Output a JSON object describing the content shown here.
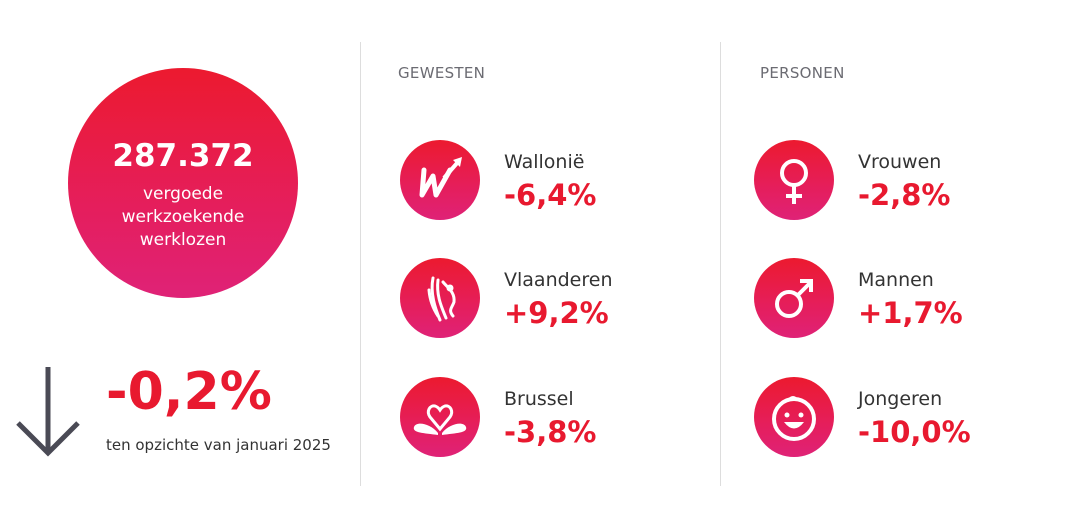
{
  "summary": {
    "total": "287.372",
    "description_lines": [
      "vergoede",
      "werkzoekende",
      "werklozen"
    ],
    "change": "-0,2%",
    "change_note": "ten opzichte van januari 2025",
    "trend_icon": "arrow-down-icon"
  },
  "gewesten": {
    "header": "GEWESTEN",
    "items": [
      {
        "label": "Wallonië",
        "value": "-6,4%",
        "icon": "wallonia-logo-icon"
      },
      {
        "label": "Vlaanderen",
        "value": "+9,2%",
        "icon": "flanders-lion-icon"
      },
      {
        "label": "Brussel",
        "value": "-3,8%",
        "icon": "brussels-heart-icon"
      }
    ]
  },
  "personen": {
    "header": "PERSONEN",
    "items": [
      {
        "label": "Vrouwen",
        "value": "-2,8%",
        "icon": "female-symbol-icon"
      },
      {
        "label": "Mannen",
        "value": "+1,7%",
        "icon": "male-symbol-icon"
      },
      {
        "label": "Jongeren",
        "value": "-10,0%",
        "icon": "smiley-child-icon"
      }
    ]
  },
  "colors": {
    "accent": "#E8192F",
    "gradient_top": "#EC1A2F",
    "gradient_bottom": "#DF2277",
    "arrow": "#4a4a55"
  }
}
